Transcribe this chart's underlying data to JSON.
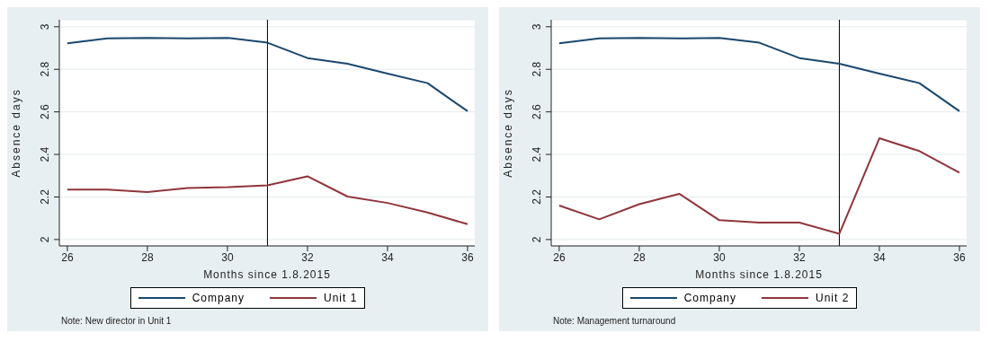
{
  "chart_data": [
    {
      "type": "line",
      "xlabel": "Months since 1.8.2015",
      "ylabel": "Absence days",
      "x": [
        26,
        27,
        28,
        29,
        30,
        31,
        32,
        33,
        34,
        35,
        36
      ],
      "xlim": [
        25.8,
        36.18
      ],
      "xticks": [
        26,
        28,
        30,
        32,
        34,
        36
      ],
      "ylim": [
        1.97,
        3.033
      ],
      "yticks": [
        2,
        2.2,
        2.4,
        2.6,
        2.8,
        3
      ],
      "grid": "y",
      "legend": "bottom",
      "ref_lines": [
        {
          "axis": "x",
          "value": 31,
          "color": "#000000"
        }
      ],
      "annotations": [
        "Note: New director in Unit 1"
      ],
      "series": [
        {
          "name": "Company",
          "color": "#1a476f",
          "values": [
            2.922,
            2.945,
            2.948,
            2.945,
            2.948,
            2.925,
            2.853,
            2.826,
            2.78,
            2.735,
            2.603
          ]
        },
        {
          "name": "Unit 1",
          "color": "#90353b",
          "values": [
            2.235,
            2.235,
            2.223,
            2.242,
            2.246,
            2.255,
            2.297,
            2.202,
            2.172,
            2.127,
            2.072
          ]
        }
      ]
    },
    {
      "type": "line",
      "xlabel": "Months since 1.8.2015",
      "ylabel": "Absence days",
      "x": [
        26,
        27,
        28,
        29,
        30,
        31,
        32,
        33,
        34,
        35,
        36
      ],
      "xlim": [
        25.8,
        36.18
      ],
      "xticks": [
        26,
        28,
        30,
        32,
        34,
        36
      ],
      "ylim": [
        1.97,
        3.033
      ],
      "yticks": [
        2,
        2.2,
        2.4,
        2.6,
        2.8,
        3
      ],
      "grid": "y",
      "legend": "bottom",
      "ref_lines": [
        {
          "axis": "x",
          "value": 33,
          "color": "#000000"
        }
      ],
      "annotations": [
        "Note: Management turnaround"
      ],
      "series": [
        {
          "name": "Company",
          "color": "#1a476f",
          "values": [
            2.922,
            2.945,
            2.948,
            2.945,
            2.948,
            2.925,
            2.853,
            2.826,
            2.78,
            2.735,
            2.603
          ]
        },
        {
          "name": "Unit 2",
          "color": "#90353b",
          "values": [
            2.16,
            2.095,
            2.166,
            2.215,
            2.091,
            2.08,
            2.08,
            2.027,
            2.476,
            2.416,
            2.314
          ]
        }
      ]
    }
  ]
}
